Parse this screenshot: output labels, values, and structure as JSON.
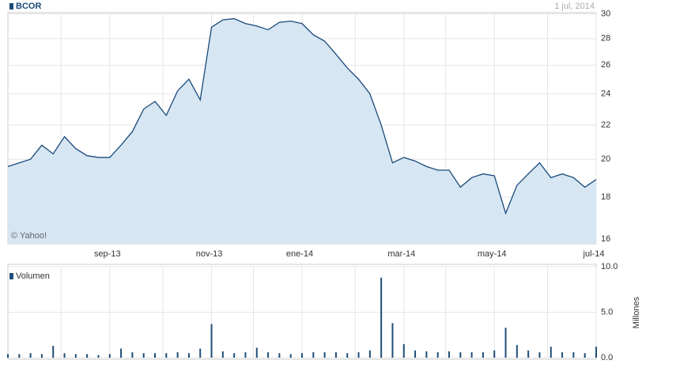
{
  "chart_data": [
    {
      "type": "area",
      "subtitle": "1 jul, 2014",
      "annotation": "© Yahoo!",
      "yscale": "log",
      "grid": true,
      "categories": [
        null,
        null,
        null,
        null,
        null,
        null,
        null,
        null,
        null,
        "sep-13",
        null,
        null,
        null,
        null,
        null,
        null,
        null,
        null,
        "nov-13",
        null,
        null,
        null,
        null,
        null,
        null,
        null,
        "ene-14",
        null,
        null,
        null,
        null,
        null,
        null,
        null,
        null,
        "mar-14",
        null,
        null,
        null,
        null,
        null,
        null,
        null,
        "may-14",
        null,
        null,
        null,
        null,
        null,
        null,
        null,
        null,
        "jul-14"
      ],
      "series": [
        {
          "name": "BCOR",
          "color": "#1a4a7a",
          "fill": "#d6e6f2",
          "values": [
            19.6,
            19.8,
            20.0,
            20.8,
            20.3,
            21.3,
            20.6,
            20.2,
            20.1,
            20.1,
            20.8,
            21.6,
            23.0,
            23.5,
            22.6,
            24.2,
            25.0,
            23.6,
            28.9,
            29.5,
            29.6,
            29.2,
            29.0,
            28.7,
            29.3,
            29.4,
            29.2,
            28.3,
            27.8,
            26.8,
            25.8,
            25.0,
            24.0,
            22.0,
            19.8,
            20.1,
            19.9,
            19.6,
            19.4,
            19.4,
            18.5,
            19.0,
            19.2,
            19.1,
            17.2,
            18.6,
            19.2,
            19.8,
            19.0,
            19.2,
            19.0,
            18.5,
            18.9
          ]
        }
      ],
      "ylim": [
        15.8,
        30.1
      ],
      "yticks": [
        16,
        18,
        20,
        22,
        24,
        26,
        28,
        30
      ]
    },
    {
      "type": "bar",
      "ylabel": "Millones",
      "grid": true,
      "series": [
        {
          "name": "Volumen",
          "color": "#1f4e79",
          "values": [
            0.4,
            0.4,
            0.5,
            0.4,
            1.3,
            0.5,
            0.4,
            0.4,
            0.3,
            0.4,
            1.0,
            0.6,
            0.5,
            0.5,
            0.5,
            0.6,
            0.5,
            1.0,
            3.7,
            0.7,
            0.5,
            0.6,
            1.1,
            0.6,
            0.5,
            0.4,
            0.5,
            0.6,
            0.6,
            0.6,
            0.5,
            0.6,
            0.8,
            8.8,
            3.8,
            1.5,
            0.8,
            0.7,
            0.6,
            0.7,
            0.6,
            0.6,
            0.6,
            0.8,
            3.3,
            1.4,
            0.8,
            0.6,
            1.2,
            0.6,
            0.6,
            0.5,
            1.2
          ]
        }
      ],
      "ylim": [
        0,
        10
      ],
      "yticks": [
        {
          "value": 0,
          "label": "0.0"
        },
        {
          "value": 5,
          "label": "5.0"
        },
        {
          "value": 10,
          "label": "10.0"
        }
      ]
    }
  ]
}
